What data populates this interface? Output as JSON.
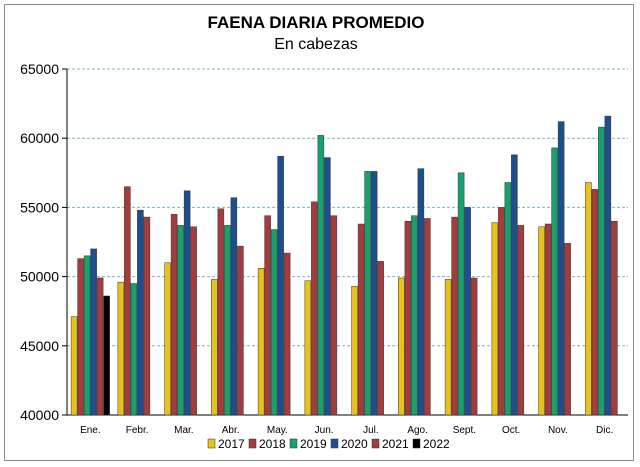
{
  "chart_data": {
    "type": "bar",
    "title": "FAENA DIARIA PROMEDIO",
    "subtitle": "En cabezas",
    "xlabel": "",
    "ylabel": "",
    "ylim": [
      40000,
      65000
    ],
    "yticks": [
      "40000",
      "45000",
      "50000",
      "55000",
      "60000",
      "65000"
    ],
    "grid": true,
    "legend_position": "bottom",
    "categories": [
      "Ene.",
      "Febr.",
      "Mar.",
      "Abr.",
      "May.",
      "Jun.",
      "Jul.",
      "Ago.",
      "Sept.",
      "Oct.",
      "Nov.",
      "Dic."
    ],
    "series": [
      {
        "name": "2017",
        "color": "#e8c21a",
        "values": [
          47100,
          49600,
          51000,
          49800,
          50600,
          49700,
          49300,
          49900,
          49800,
          53900,
          53600,
          56800
        ]
      },
      {
        "name": "2018",
        "color": "#a33c3c",
        "values": [
          51300,
          56500,
          54500,
          54900,
          54400,
          55400,
          53800,
          54000,
          54300,
          55000,
          53800,
          56300
        ]
      },
      {
        "name": "2019",
        "color": "#18a06e",
        "values": [
          51500,
          49500,
          53700,
          53700,
          53400,
          60200,
          57600,
          54400,
          57500,
          56800,
          59300,
          60800
        ]
      },
      {
        "name": "2020",
        "color": "#1f4e8c",
        "values": [
          52000,
          54800,
          56200,
          55700,
          58700,
          58600,
          57600,
          57800,
          55000,
          58800,
          61200,
          61600
        ]
      },
      {
        "name": "2021",
        "color": "#a33c3c",
        "values": [
          49900,
          54300,
          53600,
          52200,
          51700,
          54400,
          51100,
          54200,
          49900,
          53700,
          52400,
          54000
        ]
      },
      {
        "name": "2022",
        "color": "#000000",
        "values": [
          48600,
          null,
          null,
          null,
          null,
          null,
          null,
          null,
          null,
          null,
          null,
          null
        ]
      }
    ]
  }
}
